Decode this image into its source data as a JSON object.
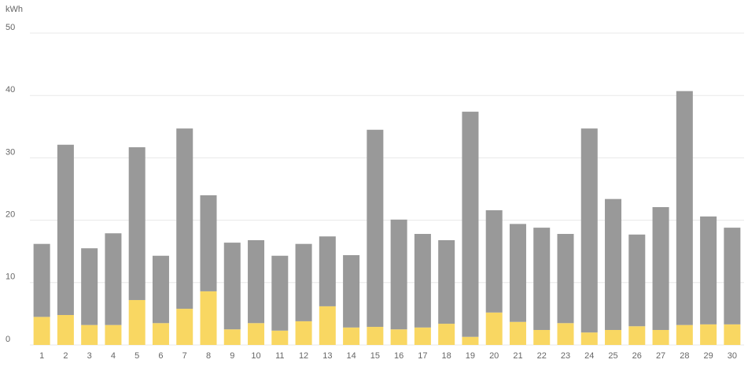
{
  "chart_data": {
    "type": "stacked_bar",
    "y_label": "kWh",
    "categories": [
      "1",
      "2",
      "3",
      "4",
      "5",
      "6",
      "7",
      "8",
      "9",
      "10",
      "11",
      "12",
      "13",
      "14",
      "15",
      "16",
      "17",
      "18",
      "19",
      "20",
      "21",
      "22",
      "23",
      "24",
      "25",
      "26",
      "27",
      "28",
      "29",
      "30"
    ],
    "series": [
      {
        "color": "#f9d762",
        "values": [
          4.5,
          4.8,
          3.2,
          3.2,
          7.2,
          3.5,
          5.8,
          8.6,
          2.5,
          3.5,
          2.3,
          3.8,
          6.2,
          2.8,
          2.9,
          2.5,
          2.8,
          3.4,
          1.3,
          5.2,
          3.7,
          2.4,
          3.5,
          2.0,
          2.4,
          3.0,
          2.4,
          3.2,
          3.3,
          3.3
        ]
      },
      {
        "color": "#999999",
        "values": [
          11.7,
          27.3,
          12.3,
          14.7,
          24.5,
          10.8,
          28.9,
          15.4,
          13.9,
          13.3,
          12.0,
          12.4,
          11.2,
          11.6,
          31.6,
          17.6,
          15.0,
          13.4,
          36.1,
          16.4,
          15.7,
          16.4,
          14.3,
          32.7,
          21.0,
          14.7,
          19.7,
          37.5,
          17.3,
          15.5
        ]
      }
    ],
    "ylim": [
      0,
      50
    ],
    "yticks": [
      0,
      10,
      20,
      30,
      40,
      50
    ],
    "grid": true
  }
}
